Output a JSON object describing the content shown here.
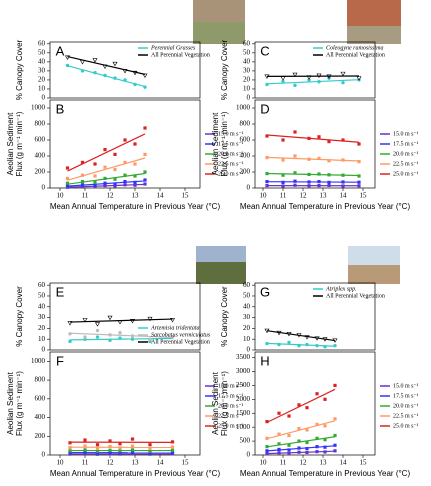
{
  "chart_data": [
    {
      "type": "scatter",
      "panel": "A",
      "ylabel": [
        "% Canopy Cover"
      ],
      "legend": "upper right",
      "xlim": [
        9.6,
        15.6
      ],
      "ylim": [
        0,
        62
      ],
      "yticks": [
        0,
        10,
        20,
        30,
        40,
        50,
        60
      ],
      "x": [
        10.3,
        10.9,
        11.4,
        11.8,
        12.2,
        12.6,
        13.0,
        13.4
      ],
      "series": [
        {
          "name": "Perennial Grasses",
          "color": "#33cccc",
          "marker": "circle",
          "values": [
            36,
            30,
            28,
            25,
            22,
            20,
            15,
            12
          ]
        },
        {
          "name": "All Perennial Vegetation",
          "color": "#000000",
          "marker": "triangle",
          "values": [
            45,
            40,
            42,
            35,
            38,
            30,
            28,
            25
          ]
        }
      ]
    },
    {
      "type": "scatter",
      "panel": "B",
      "ylabel": [
        "Aeolian Sediment",
        "Flux (g m⁻¹ min⁻¹)"
      ],
      "xlabel": "Mean Annual Temperature in Previous Year (°C)",
      "legend": "outside right",
      "xlim": [
        9.6,
        15.6
      ],
      "ylim": [
        0,
        1100
      ],
      "xticks": [
        10,
        11,
        12,
        13,
        14,
        15
      ],
      "yticks": [
        0,
        200,
        400,
        600,
        800,
        1000
      ],
      "x": [
        10.3,
        10.9,
        11.4,
        11.8,
        12.2,
        12.6,
        13.0,
        13.4
      ],
      "series": [
        {
          "name": "15.0 m s⁻¹",
          "color": "#6633cc",
          "marker": "square",
          "values": [
            10,
            20,
            15,
            30,
            25,
            40,
            35,
            50
          ]
        },
        {
          "name": "17.5 m s⁻¹",
          "color": "#3333ff",
          "marker": "square",
          "values": [
            30,
            40,
            35,
            60,
            50,
            80,
            70,
            100
          ]
        },
        {
          "name": "20.0 m s⁻¹",
          "color": "#33aa33",
          "marker": "square",
          "values": [
            60,
            80,
            70,
            120,
            110,
            160,
            150,
            200
          ]
        },
        {
          "name": "22.5 m s⁻¹",
          "color": "#ff9966",
          "marker": "square",
          "values": [
            120,
            160,
            150,
            260,
            230,
            320,
            300,
            420
          ]
        },
        {
          "name": "25.0 m s⁻¹",
          "color": "#dd2222",
          "marker": "square",
          "values": [
            250,
            320,
            300,
            480,
            420,
            600,
            550,
            750
          ]
        }
      ]
    },
    {
      "type": "scatter",
      "panel": "C",
      "ylabel": [
        "% Canopy Cover"
      ],
      "legend": "upper right",
      "xlim": [
        9.6,
        15.6
      ],
      "ylim": [
        0,
        62
      ],
      "yticks": [
        0,
        10,
        20,
        30,
        40,
        50,
        60
      ],
      "x": [
        10.2,
        11.0,
        11.6,
        12.3,
        12.8,
        13.3,
        14.0,
        14.8
      ],
      "series": [
        {
          "name": "Coleogyne ramosissima",
          "color": "#33cccc",
          "marker": "circle",
          "values": [
            15,
            18,
            14,
            20,
            18,
            22,
            17,
            20
          ]
        },
        {
          "name": "All Perennial Vegetation",
          "color": "#000000",
          "marker": "triangle",
          "values": [
            24,
            22,
            26,
            23,
            25,
            24,
            27,
            22
          ]
        }
      ]
    },
    {
      "type": "scatter",
      "panel": "D",
      "ylabel": [
        "Aeolian Sediment",
        "Flux (g m⁻¹ min⁻¹)"
      ],
      "xlabel": "Mean Annual Temperature in Previous Year (°C)",
      "legend": "outside right",
      "xlim": [
        9.6,
        15.6
      ],
      "ylim": [
        0,
        1100
      ],
      "xticks": [
        10,
        11,
        12,
        13,
        14,
        15
      ],
      "yticks": [
        0,
        200,
        400,
        600,
        800,
        1000
      ],
      "x": [
        10.2,
        11.0,
        11.6,
        12.3,
        12.8,
        13.3,
        14.0,
        14.8
      ],
      "series": [
        {
          "name": "15.0 m s⁻¹",
          "color": "#6633cc",
          "marker": "square",
          "values": [
            30,
            25,
            35,
            28,
            30,
            32,
            25,
            28
          ]
        },
        {
          "name": "17.5 m s⁻¹",
          "color": "#3333ff",
          "marker": "square",
          "values": [
            80,
            70,
            85,
            75,
            80,
            70,
            75,
            72
          ]
        },
        {
          "name": "20.0 m s⁻¹",
          "color": "#33aa33",
          "marker": "square",
          "values": [
            180,
            160,
            190,
            170,
            175,
            165,
            160,
            150
          ]
        },
        {
          "name": "22.5 m s⁻¹",
          "color": "#ff9966",
          "marker": "square",
          "values": [
            380,
            350,
            400,
            360,
            370,
            340,
            350,
            330
          ]
        },
        {
          "name": "25.0 m s⁻¹",
          "color": "#dd2222",
          "marker": "square",
          "values": [
            650,
            600,
            700,
            620,
            640,
            580,
            600,
            550
          ]
        }
      ]
    },
    {
      "type": "scatter",
      "panel": "E",
      "ylabel": [
        "% Canopy Cover"
      ],
      "legend": "lower right",
      "xlim": [
        9.6,
        15.6
      ],
      "ylim": [
        0,
        62
      ],
      "yticks": [
        0,
        10,
        20,
        30,
        40,
        50,
        60
      ],
      "x": [
        10.4,
        11.0,
        11.5,
        12.0,
        12.4,
        12.9,
        13.6,
        14.5
      ],
      "series": [
        {
          "name": "Artemisia tridentata",
          "color": "#33cccc",
          "marker": "circle",
          "values": [
            8,
            10,
            12,
            9,
            11,
            10,
            8,
            12
          ]
        },
        {
          "name": "Sarcobatus vermiculatus",
          "color": "#bbbbbb",
          "marker": "circle",
          "values": [
            15,
            12,
            18,
            14,
            16,
            13,
            10,
            12
          ]
        },
        {
          "name": "All Perennial Vegetation",
          "color": "#000000",
          "marker": "triangle",
          "values": [
            25,
            28,
            24,
            30,
            26,
            27,
            29,
            28
          ]
        }
      ]
    },
    {
      "type": "scatter",
      "panel": "F",
      "ylabel": [
        "Aeolian Sediment",
        "Flux (g m⁻¹ min⁻¹)"
      ],
      "xlabel": "Mean Annual Temperature in Previous Year (°C)",
      "legend": "outside right",
      "xlim": [
        9.6,
        15.6
      ],
      "ylim": [
        0,
        1100
      ],
      "xticks": [
        10,
        11,
        12,
        13,
        14,
        15
      ],
      "yticks": [
        0,
        200,
        400,
        600,
        800,
        1000
      ],
      "x": [
        10.4,
        11.0,
        11.5,
        12.0,
        12.4,
        12.9,
        13.6,
        14.5
      ],
      "series": [
        {
          "name": "15.0 m s⁻¹",
          "color": "#6633cc",
          "marker": "square",
          "values": [
            10,
            15,
            8,
            12,
            10,
            14,
            9,
            12
          ]
        },
        {
          "name": "17.5 m s⁻¹",
          "color": "#3333ff",
          "marker": "square",
          "values": [
            25,
            30,
            20,
            28,
            22,
            30,
            20,
            25
          ]
        },
        {
          "name": "20.0 m s⁻¹",
          "color": "#33aa33",
          "marker": "square",
          "values": [
            45,
            55,
            40,
            50,
            45,
            55,
            40,
            50
          ]
        },
        {
          "name": "22.5 m s⁻¹",
          "color": "#ff9966",
          "marker": "square",
          "values": [
            80,
            95,
            70,
            90,
            75,
            95,
            70,
            85
          ]
        },
        {
          "name": "25.0 m s⁻¹",
          "color": "#dd2222",
          "marker": "square",
          "values": [
            130,
            160,
            110,
            150,
            120,
            170,
            110,
            140
          ]
        }
      ]
    },
    {
      "type": "scatter",
      "panel": "G",
      "ylabel": [
        "% Canopy Cover"
      ],
      "legend": "upper right",
      "xlim": [
        9.6,
        15.6
      ],
      "ylim": [
        0,
        62
      ],
      "yticks": [
        0,
        10,
        20,
        30,
        40,
        50,
        60
      ],
      "x": [
        10.2,
        10.8,
        11.3,
        11.8,
        12.2,
        12.7,
        13.1,
        13.6
      ],
      "series": [
        {
          "name": "Atriplex spp.",
          "color": "#33cccc",
          "marker": "circle",
          "values": [
            6,
            5,
            7,
            4,
            5,
            4,
            3,
            4
          ]
        },
        {
          "name": "All Perennial Vegetation",
          "color": "#000000",
          "marker": "triangle",
          "values": [
            18,
            16,
            15,
            14,
            12,
            11,
            10,
            9
          ]
        }
      ]
    },
    {
      "type": "scatter",
      "panel": "H",
      "ylabel": [
        "Aeolian Sediment",
        "Flux (g m⁻¹ min⁻¹)"
      ],
      "xlabel": "Mean Annual Temperature in Previous Year (°C)",
      "legend": "outside right",
      "xlim": [
        9.6,
        15.6
      ],
      "ylim": [
        0,
        3700
      ],
      "xticks": [
        10,
        11,
        12,
        13,
        14,
        15
      ],
      "yticks": [
        0,
        500,
        1000,
        1500,
        2000,
        2500,
        3000,
        3500
      ],
      "x": [
        10.2,
        10.8,
        11.3,
        11.8,
        12.2,
        12.7,
        13.1,
        13.6
      ],
      "series": [
        {
          "name": "15.0 m s⁻¹",
          "color": "#6633cc",
          "marker": "square",
          "values": [
            50,
            80,
            60,
            100,
            90,
            120,
            110,
            150
          ]
        },
        {
          "name": "17.5 m s⁻¹",
          "color": "#3333ff",
          "marker": "square",
          "values": [
            150,
            200,
            180,
            250,
            230,
            300,
            280,
            350
          ]
        },
        {
          "name": "20.0 m s⁻¹",
          "color": "#33aa33",
          "marker": "square",
          "values": [
            300,
            400,
            350,
            500,
            450,
            600,
            550,
            700
          ]
        },
        {
          "name": "22.5 m s⁻¹",
          "color": "#ff9966",
          "marker": "square",
          "values": [
            600,
            750,
            700,
            950,
            900,
            1100,
            1050,
            1300
          ]
        },
        {
          "name": "25.0 m s⁻¹",
          "color": "#dd2222",
          "marker": "square",
          "values": [
            1200,
            1500,
            1400,
            1800,
            1700,
            2200,
            2000,
            2500
          ]
        }
      ]
    }
  ]
}
